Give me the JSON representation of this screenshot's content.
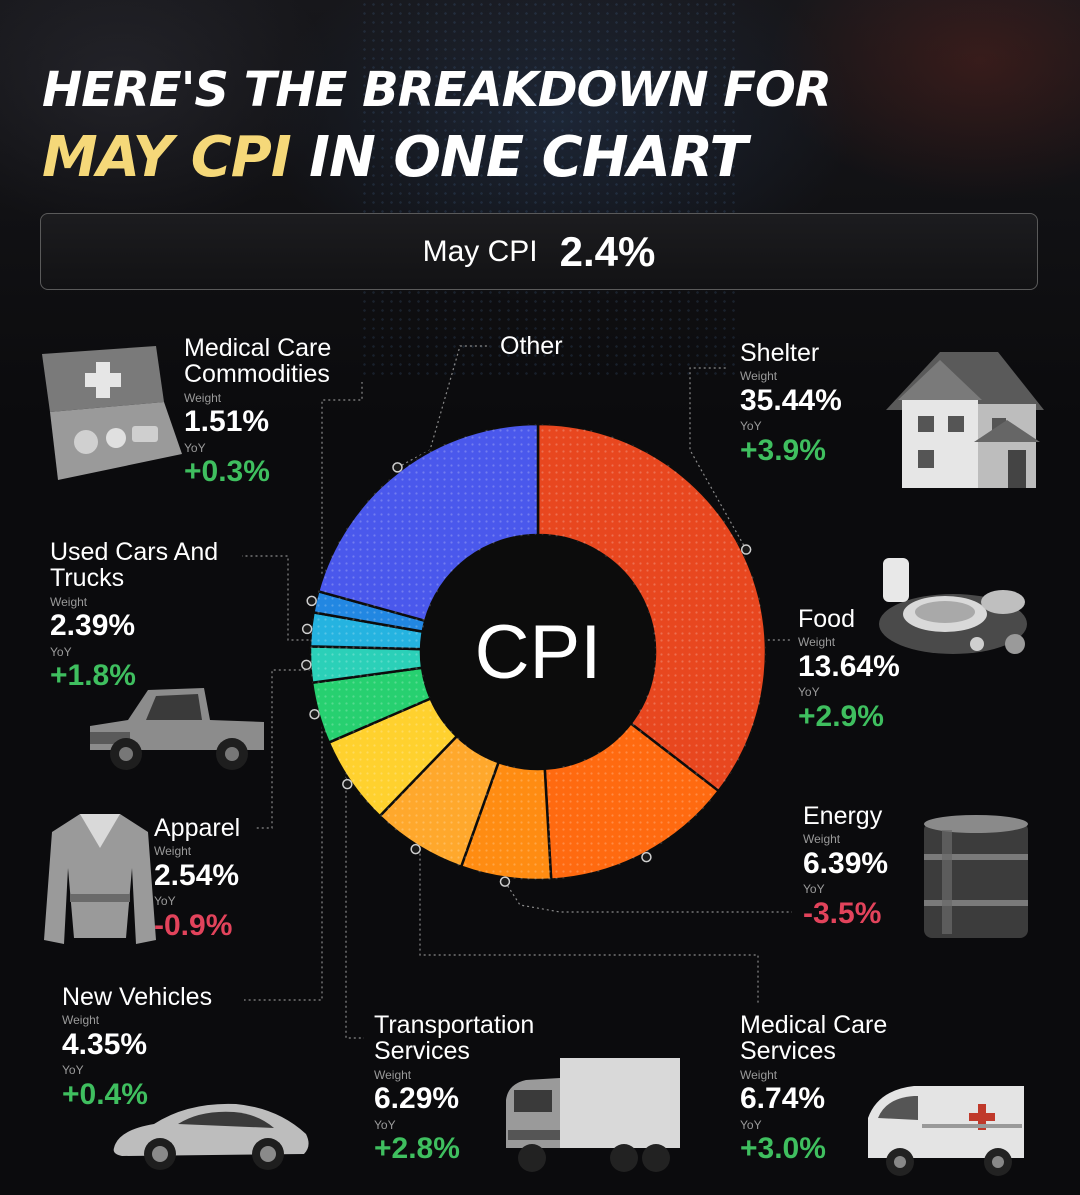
{
  "title_line1": "HERE'S THE BREAKDOWN FOR",
  "title_line2_highlight": "MAY CPI",
  "title_line2_rest": "IN ONE CHART",
  "headline_bar": {
    "label": "May CPI",
    "value": "2.4%"
  },
  "center_label": "CPI",
  "weight_label": "Weight",
  "yoy_label": "YoY",
  "colors": {
    "background": "#0b0b0d",
    "title_highlight": "#f5d879",
    "positive": "#3fbf5f",
    "negative": "#e2435b"
  },
  "categories": {
    "shelter": {
      "name": "Shelter",
      "weight": "35.44%",
      "yoy": "+3.9%",
      "icon": "house-icon"
    },
    "food": {
      "name": "Food",
      "weight": "13.64%",
      "yoy": "+2.9%",
      "icon": "food-plate-icon"
    },
    "energy": {
      "name": "Energy",
      "weight": "6.39%",
      "yoy": "-3.5%",
      "icon": "oil-barrel-icon"
    },
    "medical_services": {
      "name_line1": "Medical Care",
      "name_line2": "Services",
      "weight": "6.74%",
      "yoy": "+3.0%",
      "icon": "ambulance-icon"
    },
    "transportation": {
      "name_line1": "Transportation",
      "name_line2": "Services",
      "weight": "6.29%",
      "yoy": "+2.8%",
      "icon": "truck-icon"
    },
    "new_vehicles": {
      "name": "New Vehicles",
      "weight": "4.35%",
      "yoy": "+0.4%",
      "icon": "sports-car-icon"
    },
    "apparel": {
      "name": "Apparel",
      "weight": "2.54%",
      "yoy": "-0.9%",
      "icon": "jacket-icon"
    },
    "used_cars": {
      "name_line1": "Used Cars And",
      "name_line2": "Trucks",
      "weight": "2.39%",
      "yoy": "+1.8%",
      "icon": "pickup-truck-icon"
    },
    "medical_commodities": {
      "name_line1": "Medical Care",
      "name_line2": "Commodities",
      "weight": "1.51%",
      "yoy": "+0.3%",
      "icon": "first-aid-kit-icon"
    },
    "other": {
      "name": "Other"
    }
  },
  "chart_data": {
    "type": "pie",
    "title": "",
    "center_label": "CPI",
    "unit": "%",
    "categories": [
      "Shelter",
      "Food",
      "Energy",
      "Medical Care Services",
      "Transportation Services",
      "New Vehicles",
      "Apparel",
      "Used Cars And Trucks",
      "Medical Care Commodities",
      "Other"
    ],
    "values": [
      35.44,
      13.64,
      6.39,
      6.74,
      6.29,
      4.35,
      2.54,
      2.39,
      1.51,
      20.71
    ],
    "yoy_change": [
      3.9,
      2.9,
      -3.5,
      3.0,
      2.8,
      0.4,
      -0.9,
      1.8,
      0.3,
      null
    ],
    "colors": [
      "#e8471f",
      "#ff6a10",
      "#ff8c12",
      "#ffa82c",
      "#ffd12e",
      "#27d070",
      "#2bd0b8",
      "#25b3e0",
      "#2287e2",
      "#4a58ec"
    ]
  }
}
